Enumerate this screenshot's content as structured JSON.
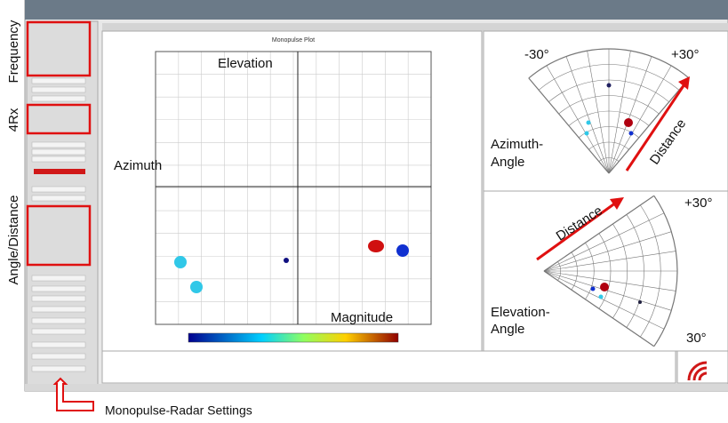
{
  "annotations": {
    "frequency": "Frequency",
    "rx": "4Rx",
    "angle_distance": "Angle/Distance",
    "settings": "Monopulse-Radar Settings"
  },
  "monopulse_plot": {
    "title": "Monopulse Plot",
    "elevation": "Elevation",
    "azimuth": "Azimuth",
    "magnitude": "Magnitude"
  },
  "azimuth_panel": {
    "left_angle": "-30°",
    "right_angle": "+30°",
    "distance": "Distance",
    "label_lines": [
      "Azimuth-",
      "Angle"
    ]
  },
  "elevation_panel": {
    "top_angle": "+30°",
    "bottom_angle": "30°",
    "distance": "Distance",
    "label_lines": [
      "Elevation-",
      "Angle"
    ]
  }
}
